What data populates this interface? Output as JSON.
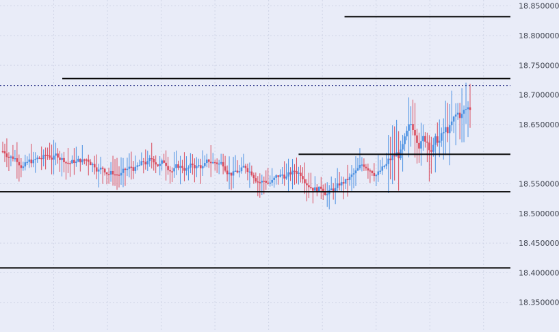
{
  "chart_data": {
    "type": "candlestick",
    "ylim": [
      18.3,
      18.86
    ],
    "grid": true,
    "y_ticks": [
      {
        "value": 18.85,
        "label": "18.850000"
      },
      {
        "value": 18.8,
        "label": "18.800000"
      },
      {
        "value": 18.75,
        "label": "18.750000"
      },
      {
        "value": 18.7,
        "label": "18.700000"
      },
      {
        "value": 18.65,
        "label": "18.650000"
      },
      {
        "value": 18.55,
        "label": "18.550000"
      },
      {
        "value": 18.5,
        "label": "18.500000"
      },
      {
        "value": 18.45,
        "label": "18.450000"
      },
      {
        "value": 18.4,
        "label": "18.400000"
      },
      {
        "value": 18.35,
        "label": "18.350000"
      }
    ],
    "levels": [
      {
        "value": 18.831867,
        "label": "18.831867",
        "x_from": 0.675
      },
      {
        "value": 18.727441,
        "label": "18.727441",
        "x_from": 0.122
      },
      {
        "value": 18.599725,
        "label": "18.599725",
        "x_from": 0.585
      },
      {
        "value": 18.536618,
        "label": "18.536618",
        "x_from": 0.0
      },
      {
        "value": 18.408065,
        "label": "18.408065",
        "x_from": 0.0
      }
    ],
    "current_price": {
      "value": 18.7158,
      "label": "18.715800"
    },
    "colors": {
      "up": "#4a90e2",
      "down": "#d94a5c",
      "level": "#000000",
      "current": "#1a237e",
      "grid": "#cfd4e6",
      "background": "#e9ecf8"
    },
    "candle_count": 230,
    "base_price": 18.605,
    "seed": 7
  }
}
